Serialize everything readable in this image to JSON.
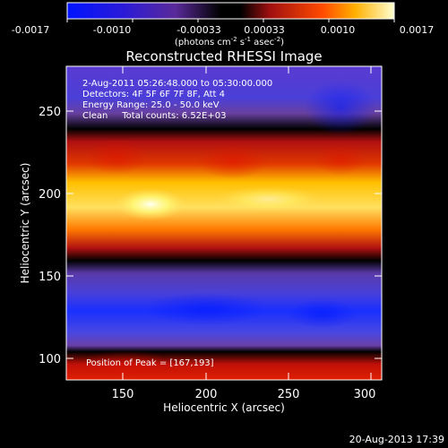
{
  "colorbar": {
    "ticks": [
      "-0.0017",
      "-0.0010",
      "-0.00033",
      "0.00033",
      "0.0010",
      "0.0017"
    ],
    "units_main": "(photons cm",
    "units_sup1": "-2",
    "units_mid1": " s",
    "units_sup2": "-1",
    "units_mid2": " asec",
    "units_sup3": "-2",
    "units_end": ")"
  },
  "title": "Reconstructed RHESSI Image",
  "info": {
    "time_range": "2-Aug-2011 05:26:48.000 to 05:30:00.000",
    "detectors": "Detectors: 4F 5F 6F 7F 8F, Att 4",
    "energy": "Energy Range: 25.0 - 50.0 keV",
    "clean": "Clean     Total counts: 6.52E+03"
  },
  "peak": "Position of Peak = [167,193]",
  "axes": {
    "xlabel": "Heliocentric X (arcsec)",
    "ylabel": "Heliocentric Y (arcsec)",
    "xticks": [
      "150",
      "200",
      "250",
      "300"
    ],
    "yticks": [
      "100",
      "150",
      "200",
      "250"
    ]
  },
  "timestamp": "20-Aug-2013 17:39"
}
